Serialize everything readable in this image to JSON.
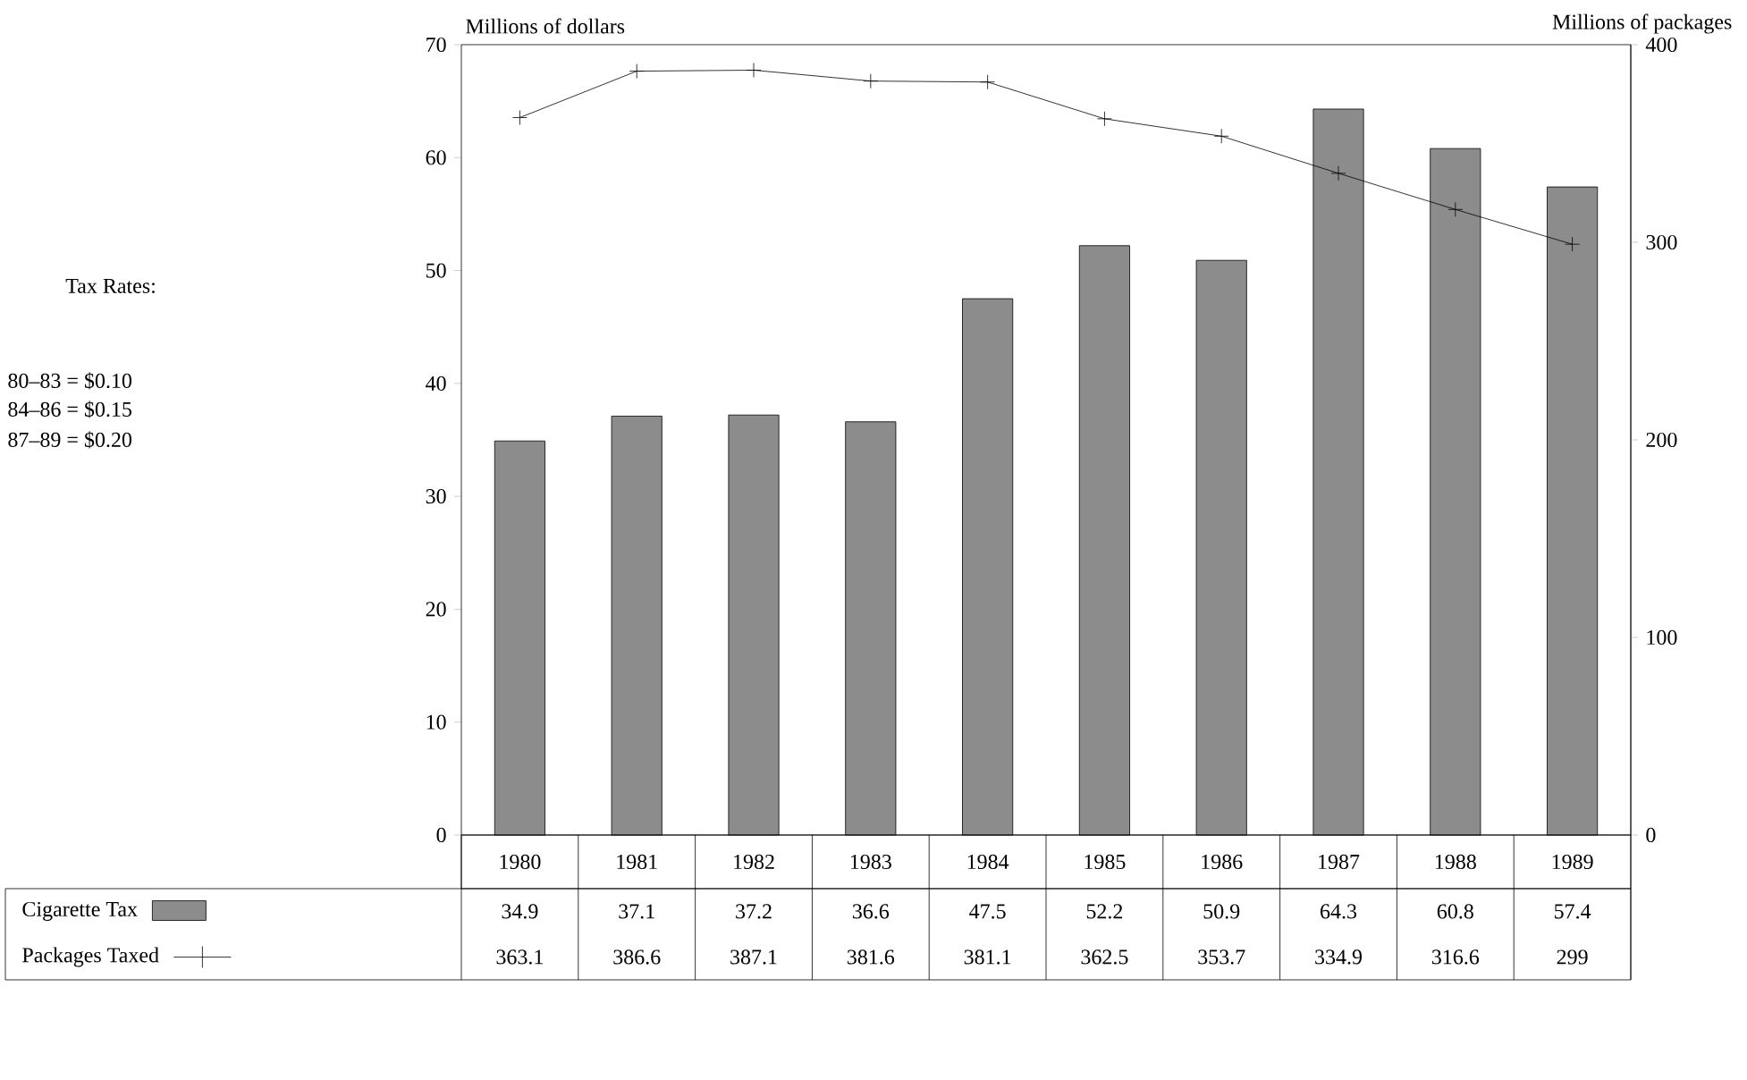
{
  "chart_data": {
    "type": "bar",
    "categories": [
      "1980",
      "1981",
      "1982",
      "1983",
      "1984",
      "1985",
      "1986",
      "1987",
      "1988",
      "1989"
    ],
    "series": [
      {
        "name": "Cigarette Tax",
        "color": "#8c8c8c",
        "values": [
          34.9,
          37.1,
          37.2,
          36.6,
          47.5,
          52.2,
          50.9,
          64.3,
          60.8,
          57.4
        ]
      },
      {
        "name": "Packages Taxed",
        "type": "line",
        "axis": "y2",
        "color": "#000000",
        "values": [
          363.1,
          386.6,
          387.1,
          381.6,
          381.1,
          362.5,
          353.7,
          334.9,
          316.6,
          299
        ]
      }
    ],
    "ylabel": "Millions of dollars",
    "y2label": "Millions of packages",
    "ylim": [
      0,
      70
    ],
    "yticks": [
      0,
      10,
      20,
      30,
      40,
      50,
      60,
      70
    ],
    "y2lim": [
      0,
      400
    ],
    "y2ticks": [
      0,
      100,
      200,
      300,
      400
    ],
    "annotations": [
      "Tax Rates:",
      "80–83 = $0.10",
      "84–86 = $0.15",
      "87–89 = $0.20"
    ],
    "data_labels": true,
    "marker": "cross",
    "line_style": "solid",
    "legend": "bottom left",
    "grid": false
  }
}
